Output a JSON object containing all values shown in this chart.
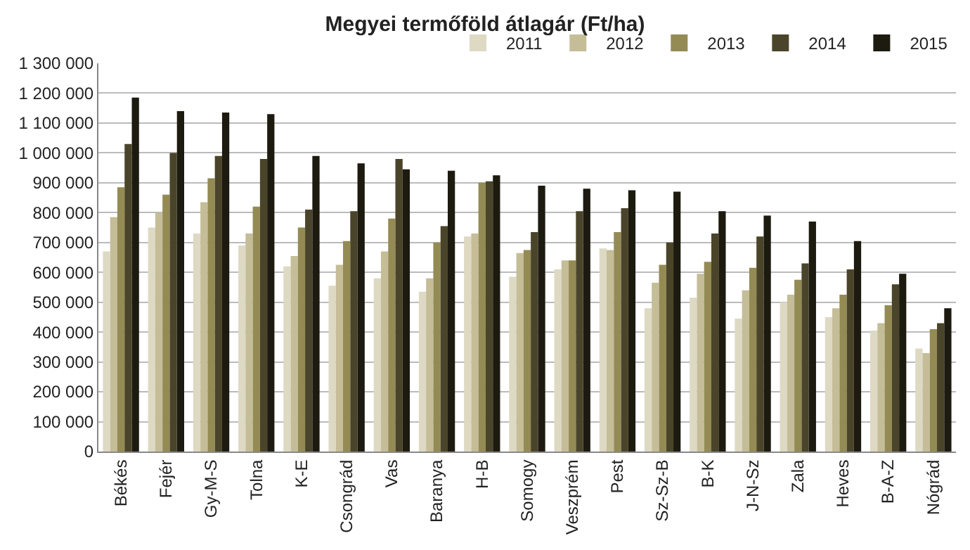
{
  "chart_data": {
    "type": "bar",
    "title": "Megyei termőföld átlagár (Ft/ha)",
    "categories": [
      "Békés",
      "Fejér",
      "Gy-M-S",
      "Tolna",
      "K-E",
      "Csongrád",
      "Vas",
      "Baranya",
      "H-B",
      "Somogy",
      "Veszprém",
      "Pest",
      "Sz-Sz-B",
      "B-K",
      "J-N-Sz",
      "Zala",
      "Heves",
      "B-A-Z",
      "Nógrád"
    ],
    "series": [
      {
        "name": "2011",
        "color": "#ddd9c3",
        "values": [
          670000,
          750000,
          730000,
          690000,
          620000,
          555000,
          580000,
          535000,
          720000,
          585000,
          610000,
          680000,
          480000,
          515000,
          445000,
          500000,
          450000,
          405000,
          345000
        ]
      },
      {
        "name": "2012",
        "color": "#c4bd97",
        "values": [
          785000,
          800000,
          835000,
          730000,
          655000,
          625000,
          670000,
          580000,
          730000,
          665000,
          640000,
          675000,
          565000,
          595000,
          540000,
          525000,
          480000,
          430000,
          330000
        ]
      },
      {
        "name": "2013",
        "color": "#948a54",
        "values": [
          885000,
          860000,
          915000,
          820000,
          750000,
          705000,
          780000,
          700000,
          900000,
          675000,
          640000,
          735000,
          625000,
          635000,
          615000,
          575000,
          525000,
          490000,
          410000
        ]
      },
      {
        "name": "2014",
        "color": "#4a452a",
        "values": [
          1030000,
          1000000,
          990000,
          980000,
          810000,
          805000,
          980000,
          755000,
          905000,
          735000,
          805000,
          815000,
          700000,
          730000,
          720000,
          630000,
          610000,
          560000,
          430000
        ]
      },
      {
        "name": "2015",
        "color": "#1d1b10",
        "values": [
          1185000,
          1140000,
          1135000,
          1130000,
          990000,
          965000,
          945000,
          940000,
          925000,
          890000,
          880000,
          875000,
          870000,
          805000,
          790000,
          770000,
          705000,
          595000,
          480000
        ]
      }
    ],
    "ylim": [
      0,
      1300000
    ],
    "yticks": [
      {
        "value": 0,
        "label": "0"
      },
      {
        "value": 100000,
        "label": "100 000"
      },
      {
        "value": 200000,
        "label": "200 000"
      },
      {
        "value": 300000,
        "label": "300 000"
      },
      {
        "value": 400000,
        "label": "400 000"
      },
      {
        "value": 500000,
        "label": "500 000"
      },
      {
        "value": 600000,
        "label": "600 000"
      },
      {
        "value": 700000,
        "label": "700 000"
      },
      {
        "value": 800000,
        "label": "800 000"
      },
      {
        "value": 900000,
        "label": "900 000"
      },
      {
        "value": 1000000,
        "label": "1 000 000"
      },
      {
        "value": 1100000,
        "label": "1 100 000"
      },
      {
        "value": 1200000,
        "label": "1 200 000"
      },
      {
        "value": 1300000,
        "label": "1 300 000"
      }
    ],
    "grid": "y",
    "legend": "top right"
  }
}
